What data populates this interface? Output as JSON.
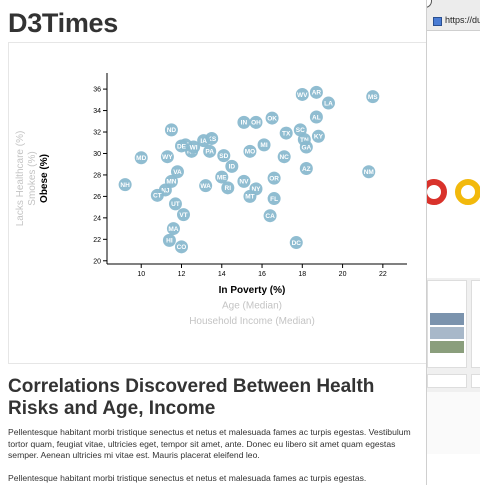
{
  "page": {
    "title": "D3Times",
    "section_heading": "Correlations Discovered Between Health Risks and Age, Income",
    "paragraphs": [
      "Pellentesque habitant morbi tristique senectus et netus et malesuada fames ac turpis egestas. Vestibulum tortor quam, feugiat vitae, ultricies eget, tempor sit amet, ante. Donec eu libero sit amet quam egestas semper. Aenean ultricies mi vitae est. Mauris placerat eleifend leo.",
      "Pellentesque habitant morbi tristique senectus et netus et malesuada fames ac turpis egestas."
    ]
  },
  "overlay_window": {
    "url_text": "https://du"
  },
  "chart_data": {
    "type": "scatter",
    "xlabel": "In Poverty (%)",
    "ylabel": "Obese (%)",
    "x_axis_options": [
      "In Poverty (%)",
      "Age (Median)",
      "Household Income (Median)"
    ],
    "y_axis_options": [
      "Obese (%)",
      "Smokes (%)",
      "Lacks Healthcare (%)"
    ],
    "active_x": "In Poverty (%)",
    "active_y": "Obese (%)",
    "xlim": [
      8.3,
      23.2
    ],
    "ylim": [
      19.7,
      37.5
    ],
    "x_ticks": [
      10,
      12,
      14,
      16,
      18,
      20,
      22
    ],
    "y_ticks": [
      20,
      22,
      24,
      26,
      28,
      30,
      32,
      34,
      36
    ],
    "points": [
      {
        "label": "WV",
        "x": 18.0,
        "y": 35.5
      },
      {
        "label": "AR",
        "x": 18.7,
        "y": 35.7
      },
      {
        "label": "MS",
        "x": 21.5,
        "y": 35.3
      },
      {
        "label": "LA",
        "x": 19.3,
        "y": 34.7
      },
      {
        "label": "AL",
        "x": 18.7,
        "y": 33.4
      },
      {
        "label": "OK",
        "x": 16.5,
        "y": 33.3
      },
      {
        "label": "IN",
        "x": 15.1,
        "y": 32.9
      },
      {
        "label": "OH",
        "x": 15.7,
        "y": 32.9
      },
      {
        "label": "SC",
        "x": 17.9,
        "y": 32.2
      },
      {
        "label": "TX",
        "x": 17.2,
        "y": 31.9
      },
      {
        "label": "ND",
        "x": 11.5,
        "y": 32.2
      },
      {
        "label": "KY",
        "x": 18.8,
        "y": 31.6
      },
      {
        "label": "TN",
        "x": 18.1,
        "y": 31.3
      },
      {
        "label": "GA",
        "x": 18.2,
        "y": 30.6
      },
      {
        "label": "KS",
        "x": 13.5,
        "y": 31.4
      },
      {
        "label": "IA",
        "x": 13.1,
        "y": 31.2
      },
      {
        "label": "MI",
        "x": 16.1,
        "y": 30.8
      },
      {
        "label": "NE",
        "x": 12.5,
        "y": 30.2
      },
      {
        "label": "MO",
        "x": 15.4,
        "y": 30.2
      },
      {
        "label": "SD",
        "x": 12.2,
        "y": 30.8
      },
      {
        "label": "WI",
        "x": 12.6,
        "y": 30.6
      },
      {
        "label": "PA",
        "x": 13.4,
        "y": 30.2
      },
      {
        "label": "DE",
        "x": 12.0,
        "y": 30.7
      },
      {
        "label": "SD2",
        "x": 14.1,
        "y": 29.8
      },
      {
        "label": "NC",
        "x": 17.1,
        "y": 29.7
      },
      {
        "label": "MD",
        "x": 10.0,
        "y": 29.6
      },
      {
        "label": "WY",
        "x": 11.3,
        "y": 29.7
      },
      {
        "label": "ID",
        "x": 14.5,
        "y": 28.8
      },
      {
        "label": "AZ",
        "x": 18.2,
        "y": 28.6
      },
      {
        "label": "ME",
        "x": 14.0,
        "y": 27.8
      },
      {
        "label": "VA",
        "x": 11.8,
        "y": 28.3
      },
      {
        "label": "OR",
        "x": 16.6,
        "y": 27.7
      },
      {
        "label": "NV",
        "x": 15.1,
        "y": 27.4
      },
      {
        "label": "NM",
        "x": 21.3,
        "y": 28.3
      },
      {
        "label": "NH",
        "x": 9.2,
        "y": 27.1
      },
      {
        "label": "WA",
        "x": 13.2,
        "y": 27.0
      },
      {
        "label": "MN",
        "x": 11.5,
        "y": 27.4
      },
      {
        "label": "RI",
        "x": 14.3,
        "y": 26.8
      },
      {
        "label": "NY",
        "x": 15.7,
        "y": 26.7
      },
      {
        "label": "NJ",
        "x": 11.2,
        "y": 26.6
      },
      {
        "label": "CT",
        "x": 10.8,
        "y": 26.1
      },
      {
        "label": "MT",
        "x": 15.4,
        "y": 26.0
      },
      {
        "label": "FL",
        "x": 16.6,
        "y": 25.8
      },
      {
        "label": "UT",
        "x": 11.7,
        "y": 25.3
      },
      {
        "label": "VT",
        "x": 12.1,
        "y": 24.3
      },
      {
        "label": "CA",
        "x": 16.4,
        "y": 24.2
      },
      {
        "label": "MA",
        "x": 11.6,
        "y": 23.0
      },
      {
        "label": "HI",
        "x": 11.4,
        "y": 21.9
      },
      {
        "label": "CO",
        "x": 12.0,
        "y": 21.3
      },
      {
        "label": "DC",
        "x": 17.7,
        "y": 21.7
      }
    ]
  }
}
